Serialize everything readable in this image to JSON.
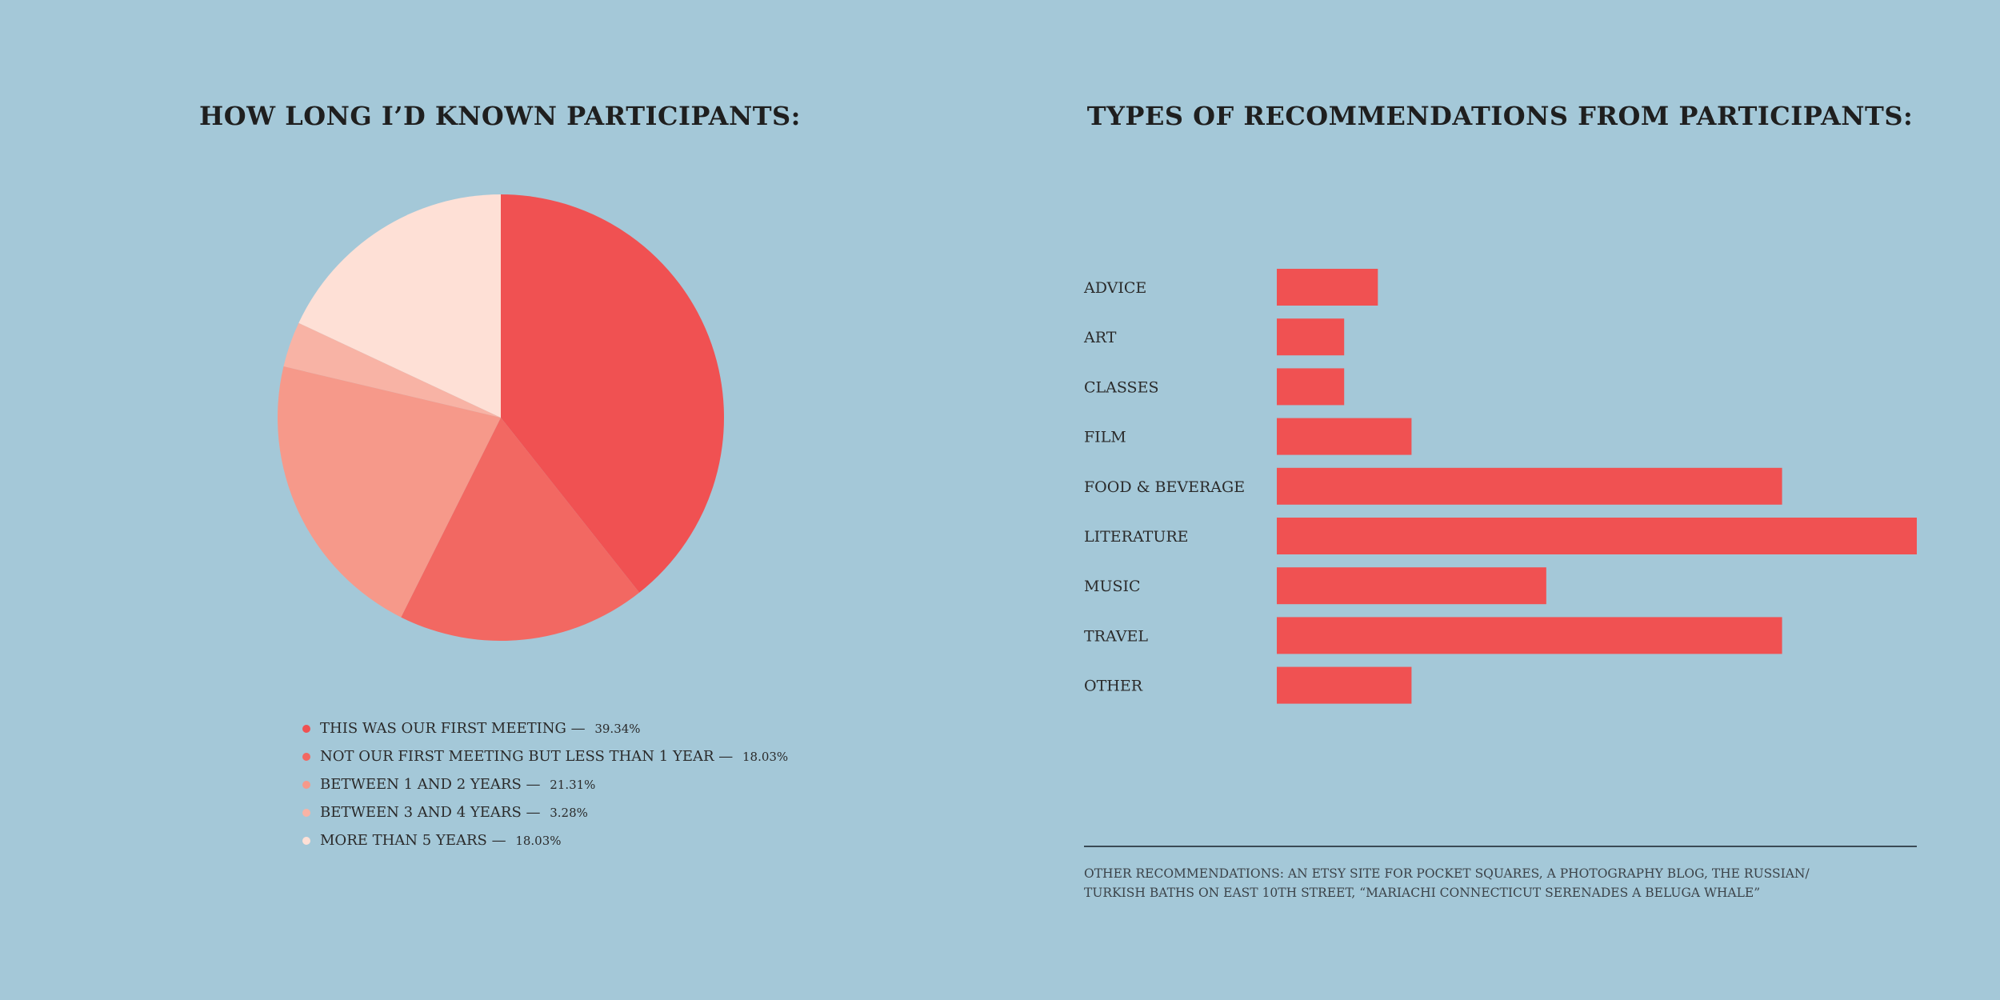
{
  "chart_data": [
    {
      "type": "pie",
      "title": "HOW LONG I’D KNOWN PARTICIPANTS:",
      "slices": [
        {
          "label": "THIS WAS OUR FIRST MEETING",
          "value": 39.34,
          "value_text": "39.34%",
          "color": "#f05152"
        },
        {
          "label": "NOT OUR FIRST MEETING BUT LESS THAN 1 YEAR",
          "value": 18.03,
          "value_text": "18.03%",
          "color": "#f26862"
        },
        {
          "label": "BETWEEN 1 AND 2 YEARS",
          "value": 21.31,
          "value_text": "21.31%",
          "color": "#f6998a"
        },
        {
          "label": "BETWEEN 3 AND 4 YEARS",
          "value": 3.28,
          "value_text": "3.28%",
          "color": "#f8b3a5"
        },
        {
          "label": "MORE THAN 5 YEARS",
          "value": 18.03,
          "value_text": "18.03%",
          "color": "#fee0d6"
        }
      ],
      "separator": " — "
    },
    {
      "type": "bar",
      "orientation": "horizontal",
      "title": "TYPES OF RECOMMENDATIONS FROM PARTICIPANTS:",
      "categories": [
        "ADVICE",
        "ART",
        "CLASSES",
        "FILM",
        "FOOD & BEVERAGE",
        "LITERATURE",
        "MUSIC",
        "TRAVEL",
        "OTHER"
      ],
      "values": [
        3,
        2,
        2,
        4,
        15,
        19,
        8,
        15,
        4
      ],
      "xlim": [
        0,
        19
      ],
      "grid": false,
      "bar_color": "#f05152"
    }
  ],
  "footnote": {
    "line1": "OTHER RECOMMENDATIONS: AN ETSY SITE FOR POCKET SQUARES, A PHOTOGRAPHY BLOG, THE RUSSIAN/",
    "line2": "TURKISH BATHS ON EAST 10TH STREET, “MARIACHI CONNECTICUT SERENADES A BELUGA WHALE”"
  },
  "colors": {
    "background": "#a4c8d8",
    "accent": "#f05152"
  }
}
